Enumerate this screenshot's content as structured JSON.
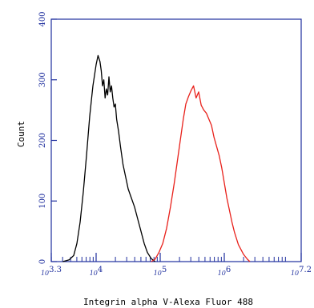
{
  "chart_data": {
    "type": "line",
    "title": "",
    "xlabel": "Integrin alpha V-Alexa Fluor 488",
    "ylabel": "Count",
    "x_scale": "log",
    "xlim": [
      3.3,
      7.2
    ],
    "ylim": [
      0,
      400
    ],
    "grid": false,
    "legend": "none",
    "x_ticks": [
      {
        "value": 3.3,
        "base": "10",
        "exp": "3.3"
      },
      {
        "value": 4,
        "base": "10",
        "exp": "4"
      },
      {
        "value": 5,
        "base": "10",
        "exp": "5"
      },
      {
        "value": 6,
        "base": "10",
        "exp": "6"
      },
      {
        "value": 7.2,
        "base": "10",
        "exp": "7.2"
      }
    ],
    "y_ticks": [
      "0",
      "100",
      "200",
      "300",
      "400"
    ],
    "y_tick_values": [
      0,
      100,
      200,
      300,
      400
    ],
    "series": [
      {
        "color": "#000000",
        "x": [
          3.48,
          3.58,
          3.65,
          3.7,
          3.75,
          3.8,
          3.85,
          3.9,
          3.95,
          4.0,
          4.03,
          4.06,
          4.08,
          4.1,
          4.12,
          4.14,
          4.16,
          4.18,
          4.2,
          4.22,
          4.24,
          4.26,
          4.28,
          4.3,
          4.32,
          4.35,
          4.38,
          4.42,
          4.46,
          4.5,
          4.55,
          4.6,
          4.65,
          4.7,
          4.75,
          4.8,
          4.86,
          4.92
        ],
        "values": [
          0,
          3,
          10,
          30,
          65,
          115,
          175,
          240,
          290,
          325,
          340,
          330,
          315,
          290,
          300,
          270,
          285,
          275,
          305,
          280,
          290,
          270,
          255,
          260,
          235,
          215,
          190,
          160,
          140,
          120,
          105,
          90,
          70,
          50,
          30,
          15,
          5,
          0
        ]
      },
      {
        "color": "#e8211b",
        "x": [
          4.86,
          4.92,
          4.98,
          5.04,
          5.1,
          5.16,
          5.22,
          5.28,
          5.32,
          5.36,
          5.4,
          5.44,
          5.48,
          5.52,
          5.56,
          5.6,
          5.64,
          5.68,
          5.72,
          5.76,
          5.8,
          5.84,
          5.88,
          5.92,
          5.96,
          6.0,
          6.04,
          6.08,
          6.12,
          6.16,
          6.22,
          6.3,
          6.36,
          6.4
        ],
        "values": [
          0,
          4,
          15,
          30,
          55,
          90,
          130,
          175,
          205,
          235,
          260,
          272,
          282,
          290,
          270,
          280,
          258,
          250,
          245,
          235,
          225,
          205,
          190,
          175,
          155,
          130,
          105,
          85,
          65,
          48,
          28,
          12,
          4,
          0
        ]
      }
    ]
  }
}
